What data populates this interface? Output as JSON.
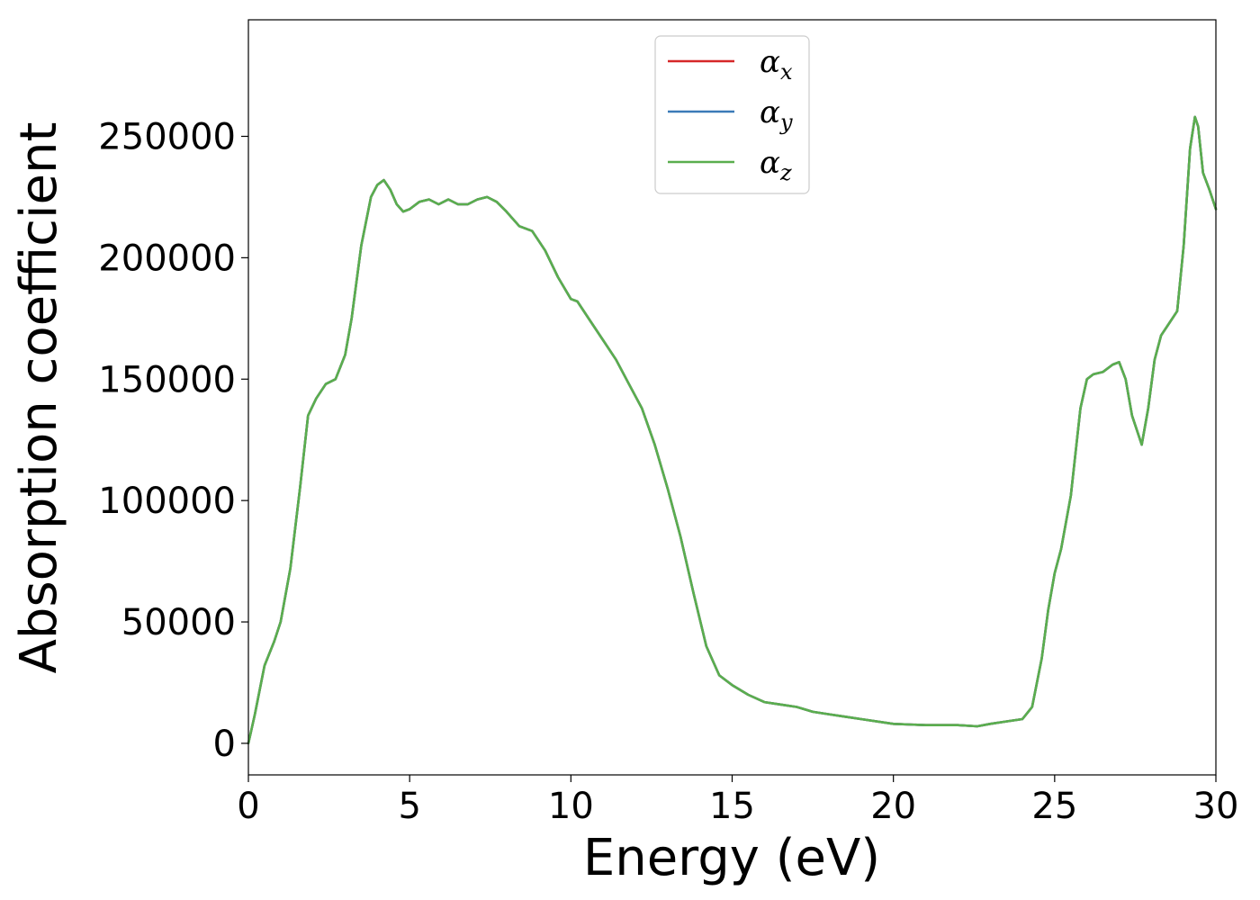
{
  "chart_data": {
    "type": "line",
    "title": "",
    "xlabel": "Energy (eV)",
    "ylabel": "Absorption coefficient",
    "xlim": [
      0,
      30
    ],
    "ylim": [
      -13000,
      298000
    ],
    "xticks": [
      0,
      5,
      10,
      15,
      20,
      25,
      30
    ],
    "yticks": [
      0,
      50000,
      100000,
      150000,
      200000,
      250000
    ],
    "grid": false,
    "legend_position": "top-center",
    "series": [
      {
        "name": "α",
        "subscript": "x",
        "color": "#d62728",
        "x": [],
        "y": []
      },
      {
        "name": "α",
        "subscript": "y",
        "color": "#3a7ab8",
        "x": [],
        "y": []
      },
      {
        "name": "α",
        "subscript": "z",
        "color": "#5aae4e",
        "x": [
          0,
          0.2,
          0.5,
          0.8,
          1.0,
          1.3,
          1.6,
          1.85,
          2.1,
          2.4,
          2.7,
          3.0,
          3.2,
          3.5,
          3.8,
          4.0,
          4.2,
          4.4,
          4.6,
          4.8,
          5.0,
          5.3,
          5.6,
          5.9,
          6.2,
          6.5,
          6.8,
          7.1,
          7.4,
          7.7,
          8.0,
          8.4,
          8.8,
          9.2,
          9.6,
          10.0,
          10.2,
          10.6,
          11.0,
          11.4,
          11.8,
          12.2,
          12.6,
          13.0,
          13.4,
          13.8,
          14.2,
          14.6,
          15.0,
          15.5,
          16.0,
          16.5,
          17.0,
          17.5,
          18.0,
          18.5,
          19.0,
          20.0,
          21.0,
          22.0,
          22.6,
          23.0,
          23.5,
          24.0,
          24.3,
          24.6,
          24.8,
          25.0,
          25.2,
          25.5,
          25.8,
          26.0,
          26.2,
          26.5,
          26.8,
          27.0,
          27.2,
          27.4,
          27.7,
          27.9,
          28.1,
          28.3,
          28.5,
          28.8,
          29.0,
          29.2,
          29.35,
          29.45,
          29.6,
          29.8,
          30.0
        ],
        "y": [
          0,
          12000,
          32000,
          42000,
          50000,
          72000,
          105000,
          135000,
          142000,
          148000,
          150000,
          160000,
          175000,
          205000,
          225000,
          230000,
          232000,
          228000,
          222000,
          219000,
          220000,
          223000,
          224000,
          222000,
          224000,
          222000,
          222000,
          224000,
          225000,
          223000,
          219000,
          213000,
          211000,
          203000,
          192000,
          183000,
          182000,
          174000,
          166000,
          158000,
          148000,
          138000,
          123000,
          105000,
          85000,
          62000,
          40000,
          28000,
          24000,
          20000,
          17000,
          16000,
          15000,
          13000,
          12000,
          11000,
          10000,
          8000,
          7500,
          7500,
          7000,
          8000,
          9000,
          10000,
          15000,
          35000,
          55000,
          70000,
          80000,
          102000,
          138000,
          150000,
          152000,
          153000,
          156000,
          157000,
          150000,
          135000,
          123000,
          138000,
          158000,
          168000,
          172000,
          178000,
          205000,
          245000,
          258000,
          254000,
          235000,
          228000,
          220000
        ]
      }
    ]
  }
}
